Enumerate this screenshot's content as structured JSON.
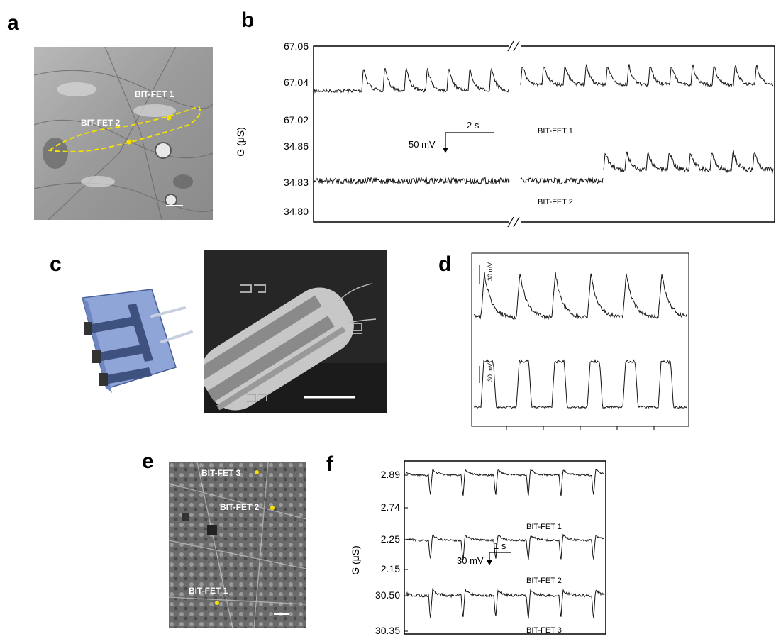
{
  "panels": {
    "a": {
      "label": "a",
      "device_labels": [
        "BIT-FET 1",
        "BIT-FET 2"
      ]
    },
    "b": {
      "label": "b",
      "ylabel": "G (μS)",
      "yticks_top": [
        "67.06",
        "67.04",
        "67.02"
      ],
      "yticks_bottom": [
        "34.86",
        "34.83",
        "34.80"
      ],
      "trace_labels": [
        "BIT-FET 1",
        "BIT-FET 2"
      ],
      "scale_time": "2 s",
      "scale_voltage": "50 mV"
    },
    "c": {
      "label": "c"
    },
    "d": {
      "label": "d",
      "scale_top": "30 mV",
      "scale_bottom": "30 mV"
    },
    "e": {
      "label": "e",
      "device_labels": [
        "BIT-FET 3",
        "BIT-FET 2",
        "BIT-FET 1"
      ]
    },
    "f": {
      "label": "f",
      "ylabel": "G (μS)",
      "yticks": [
        "2.89",
        "2.74",
        "2.25",
        "2.15",
        "30.50",
        "30.35"
      ],
      "trace_labels": [
        "BIT-FET 1",
        "BIT-FET 2",
        "BIT-FET 3"
      ],
      "scale_time": "1 s",
      "scale_voltage": "30 mV"
    }
  },
  "chart_data": [
    {
      "type": "line",
      "panel": "b",
      "ylabel": "G (μS)",
      "series": [
        {
          "name": "BIT-FET 1",
          "baseline": 67.037,
          "spike_period_s": 1.0,
          "ylim": [
            67.01,
            67.065
          ]
        },
        {
          "name": "BIT-FET 2",
          "baseline": 34.83,
          "spike_period_s": 1.0,
          "ylim": [
            34.79,
            34.87
          ]
        }
      ]
    },
    {
      "type": "line",
      "panel": "f",
      "ylabel": "G (μS)",
      "series": [
        {
          "name": "BIT-FET 1",
          "baseline": 2.88,
          "ylim": [
            2.72,
            2.92
          ]
        },
        {
          "name": "BIT-FET 2",
          "baseline": 2.23,
          "ylim": [
            2.13,
            2.28
          ]
        },
        {
          "name": "BIT-FET 3",
          "baseline": 30.49,
          "ylim": [
            30.33,
            30.55
          ]
        }
      ]
    }
  ]
}
